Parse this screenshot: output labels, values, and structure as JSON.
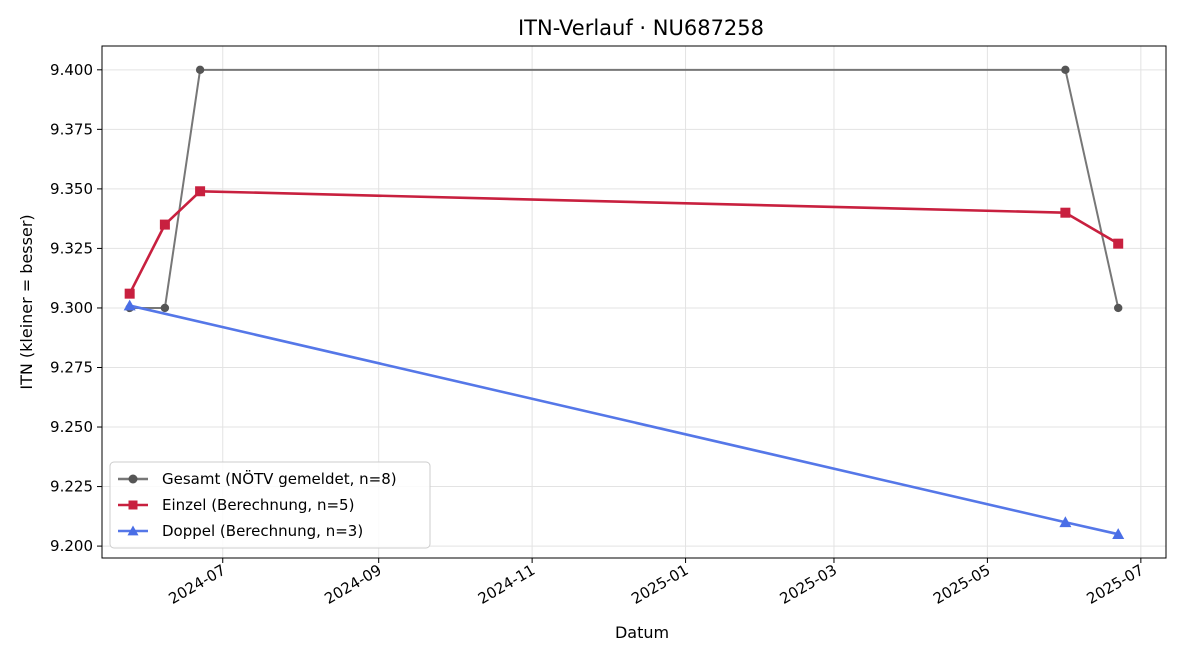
{
  "chart_data": {
    "type": "line",
    "title": "ITN-Verlauf · NU687258",
    "xlabel": "Datum",
    "ylabel": "ITN  (kleiner = besser)",
    "xlim": [
      "2024-05-14",
      "2025-07-11"
    ],
    "ylim": [
      9.195,
      9.41
    ],
    "x_ticks": [
      "2024-07",
      "2024-09",
      "2024-11",
      "2025-01",
      "2025-03",
      "2025-05",
      "2025-07"
    ],
    "y_ticks": [
      9.2,
      9.225,
      9.25,
      9.275,
      9.3,
      9.325,
      9.35,
      9.375,
      9.4
    ],
    "grid": true,
    "legend_position": "lower-left",
    "series": [
      {
        "name": "Gesamt (NÖTV gemeldet, n=8)",
        "color": "#777777",
        "marker_color": "#555555",
        "marker": "circle",
        "points": [
          {
            "x": "2024-05-25",
            "y": 9.3
          },
          {
            "x": "2024-06-08",
            "y": 9.3
          },
          {
            "x": "2024-06-22",
            "y": 9.4
          },
          {
            "x": "2025-06-01",
            "y": 9.4
          },
          {
            "x": "2025-06-22",
            "y": 9.3
          }
        ]
      },
      {
        "name": "Einzel (Berechnung, n=5)",
        "color": "#c8203f",
        "marker_color": "#c8203f",
        "marker": "square",
        "points": [
          {
            "x": "2024-05-25",
            "y": 9.306
          },
          {
            "x": "2024-06-08",
            "y": 9.335
          },
          {
            "x": "2024-06-22",
            "y": 9.349
          },
          {
            "x": "2025-06-01",
            "y": 9.34
          },
          {
            "x": "2025-06-22",
            "y": 9.327
          }
        ]
      },
      {
        "name": "Doppel (Berechnung, n=3)",
        "color": "#5577e8",
        "marker_color": "#4a6ee6",
        "marker": "triangle",
        "points": [
          {
            "x": "2024-05-25",
            "y": 9.301
          },
          {
            "x": "2025-06-01",
            "y": 9.21
          },
          {
            "x": "2025-06-22",
            "y": 9.205
          }
        ]
      }
    ]
  }
}
